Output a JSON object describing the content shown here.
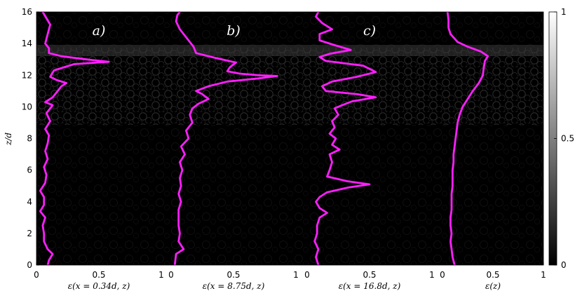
{
  "figure": {
    "ylabel": "z/d",
    "colorbar": {
      "ticks": [
        "1",
        "0.5",
        "0"
      ],
      "range": [
        0,
        1
      ],
      "colormap": "gray"
    },
    "y_ticks": [
      "0",
      "2",
      "4",
      "6",
      "8",
      "10",
      "12",
      "14",
      "16"
    ],
    "background": "#000000",
    "curve_color": "#ff1fff"
  },
  "chart_data": [
    {
      "type": "line",
      "panel_label": "a)",
      "xlabel": "ε(x = 0.34d, z)",
      "x_ticks": [
        "0",
        "0.5",
        "1"
      ],
      "xlim": [
        0,
        1
      ],
      "ylim": [
        0,
        16
      ],
      "series": [
        {
          "points": [
            [
              0.09,
              0
            ],
            [
              0.1,
              0.3
            ],
            [
              0.13,
              0.7
            ],
            [
              0.09,
              1
            ],
            [
              0.06,
              1.5
            ],
            [
              0.06,
              2
            ],
            [
              0.05,
              2.5
            ],
            [
              0.07,
              3
            ],
            [
              0.03,
              3.4
            ],
            [
              0.06,
              3.8
            ],
            [
              0.06,
              4.3
            ],
            [
              0.03,
              4.7
            ],
            [
              0.07,
              5.2
            ],
            [
              0.08,
              5.7
            ],
            [
              0.06,
              6.2
            ],
            [
              0.09,
              6.7
            ],
            [
              0.07,
              7.2
            ],
            [
              0.09,
              7.7
            ],
            [
              0.1,
              8.2
            ],
            [
              0.07,
              8.6
            ],
            [
              0.11,
              9.1
            ],
            [
              0.08,
              9.6
            ],
            [
              0.13,
              10.1
            ],
            [
              0.07,
              10.3
            ],
            [
              0.13,
              10.6
            ],
            [
              0.17,
              11
            ],
            [
              0.2,
              11.3
            ],
            [
              0.24,
              11.5
            ],
            [
              0.16,
              11.7
            ],
            [
              0.11,
              11.9
            ],
            [
              0.14,
              12.3
            ],
            [
              0.3,
              12.7
            ],
            [
              0.58,
              12.85
            ],
            [
              0.4,
              13.0
            ],
            [
              0.2,
              13.2
            ],
            [
              0.1,
              13.4
            ],
            [
              0.1,
              13.7
            ],
            [
              0.07,
              14.0
            ],
            [
              0.09,
              14.6
            ],
            [
              0.11,
              15.2
            ],
            [
              0.08,
              15.6
            ],
            [
              0.05,
              16
            ]
          ]
        }
      ]
    },
    {
      "type": "line",
      "panel_label": "b)",
      "xlabel": "ε(x = 8.75d, z)",
      "x_ticks": [
        "0",
        "0.5",
        "1"
      ],
      "xlim": [
        0,
        1
      ],
      "ylim": [
        0,
        16
      ],
      "series": [
        {
          "points": [
            [
              0.03,
              0
            ],
            [
              0.04,
              0.7
            ],
            [
              0.1,
              1
            ],
            [
              0.06,
              1.5
            ],
            [
              0.07,
              2
            ],
            [
              0.06,
              2.5
            ],
            [
              0.06,
              3
            ],
            [
              0.06,
              3.5
            ],
            [
              0.08,
              4
            ],
            [
              0.06,
              4.5
            ],
            [
              0.08,
              5
            ],
            [
              0.07,
              5.5
            ],
            [
              0.09,
              6
            ],
            [
              0.07,
              6.5
            ],
            [
              0.11,
              7
            ],
            [
              0.08,
              7.5
            ],
            [
              0.14,
              8
            ],
            [
              0.12,
              8.5
            ],
            [
              0.17,
              9
            ],
            [
              0.15,
              9.5
            ],
            [
              0.17,
              9.9
            ],
            [
              0.22,
              10.2
            ],
            [
              0.3,
              10.5
            ],
            [
              0.25,
              10.8
            ],
            [
              0.2,
              11.0
            ],
            [
              0.3,
              11.3
            ],
            [
              0.45,
              11.6
            ],
            [
              0.7,
              11.8
            ],
            [
              0.85,
              11.95
            ],
            [
              0.7,
              12.0
            ],
            [
              0.55,
              12.1
            ],
            [
              0.45,
              12.25
            ],
            [
              0.47,
              12.5
            ],
            [
              0.52,
              12.8
            ],
            [
              0.35,
              13.1
            ],
            [
              0.2,
              13.4
            ],
            [
              0.18,
              13.8
            ],
            [
              0.15,
              14.1
            ],
            [
              0.11,
              14.5
            ],
            [
              0.07,
              14.9
            ],
            [
              0.04,
              15.4
            ],
            [
              0.05,
              15.8
            ],
            [
              0.07,
              16
            ]
          ]
        }
      ]
    },
    {
      "type": "line",
      "panel_label": "c)",
      "xlabel": "ε(x = 16.8d, z)",
      "x_ticks": [
        "0",
        "0.5",
        "1"
      ],
      "xlim": [
        0,
        1
      ],
      "ylim": [
        0,
        16
      ],
      "series": [
        {
          "points": [
            [
              0.09,
              0
            ],
            [
              0.07,
              0.5
            ],
            [
              0.09,
              1
            ],
            [
              0.06,
              1.5
            ],
            [
              0.08,
              2
            ],
            [
              0.08,
              2.5
            ],
            [
              0.1,
              3
            ],
            [
              0.16,
              3.3
            ],
            [
              0.1,
              3.6
            ],
            [
              0.07,
              4
            ],
            [
              0.1,
              4.3
            ],
            [
              0.16,
              4.6
            ],
            [
              0.33,
              4.9
            ],
            [
              0.5,
              5.1
            ],
            [
              0.32,
              5.3
            ],
            [
              0.16,
              5.6
            ],
            [
              0.18,
              6
            ],
            [
              0.2,
              6.5
            ],
            [
              0.18,
              7
            ],
            [
              0.26,
              7.3
            ],
            [
              0.2,
              7.6
            ],
            [
              0.23,
              8
            ],
            [
              0.18,
              8.3
            ],
            [
              0.22,
              8.7
            ],
            [
              0.2,
              9.1
            ],
            [
              0.25,
              9.5
            ],
            [
              0.22,
              9.9
            ],
            [
              0.28,
              10.1
            ],
            [
              0.36,
              10.35
            ],
            [
              0.55,
              10.6
            ],
            [
              0.4,
              10.8
            ],
            [
              0.15,
              11.0
            ],
            [
              0.12,
              11.3
            ],
            [
              0.2,
              11.6
            ],
            [
              0.4,
              11.9
            ],
            [
              0.55,
              12.2
            ],
            [
              0.45,
              12.6
            ],
            [
              0.15,
              12.9
            ],
            [
              0.1,
              13.15
            ],
            [
              0.18,
              13.35
            ],
            [
              0.35,
              13.6
            ],
            [
              0.22,
              13.9
            ],
            [
              0.1,
              14.2
            ],
            [
              0.1,
              14.6
            ],
            [
              0.2,
              14.9
            ],
            [
              0.12,
              15.3
            ],
            [
              0.07,
              15.7
            ],
            [
              0.09,
              16
            ]
          ]
        }
      ]
    },
    {
      "type": "line",
      "panel_label": "",
      "xlabel": "ε(z)",
      "x_ticks": [
        "0",
        "0.5",
        "1"
      ],
      "xlim": [
        0,
        1
      ],
      "ylim": [
        0,
        16
      ],
      "series": [
        {
          "points": [
            [
              0.12,
              0
            ],
            [
              0.1,
              0.5
            ],
            [
              0.09,
              1
            ],
            [
              0.08,
              1.5
            ],
            [
              0.09,
              2
            ],
            [
              0.08,
              2.5
            ],
            [
              0.08,
              3
            ],
            [
              0.09,
              3.5
            ],
            [
              0.09,
              4
            ],
            [
              0.09,
              4.5
            ],
            [
              0.1,
              5
            ],
            [
              0.1,
              5.5
            ],
            [
              0.1,
              6
            ],
            [
              0.11,
              6.5
            ],
            [
              0.11,
              7
            ],
            [
              0.12,
              7.5
            ],
            [
              0.13,
              8
            ],
            [
              0.14,
              8.5
            ],
            [
              0.15,
              9
            ],
            [
              0.17,
              9.5
            ],
            [
              0.2,
              10
            ],
            [
              0.25,
              10.5
            ],
            [
              0.3,
              11
            ],
            [
              0.36,
              11.5
            ],
            [
              0.4,
              12
            ],
            [
              0.41,
              12.5
            ],
            [
              0.42,
              12.9
            ],
            [
              0.45,
              13.2
            ],
            [
              0.38,
              13.5
            ],
            [
              0.25,
              13.8
            ],
            [
              0.15,
              14.1
            ],
            [
              0.08,
              14.6
            ],
            [
              0.06,
              15.0
            ],
            [
              0.06,
              15.5
            ],
            [
              0.05,
              16
            ]
          ]
        }
      ]
    }
  ]
}
